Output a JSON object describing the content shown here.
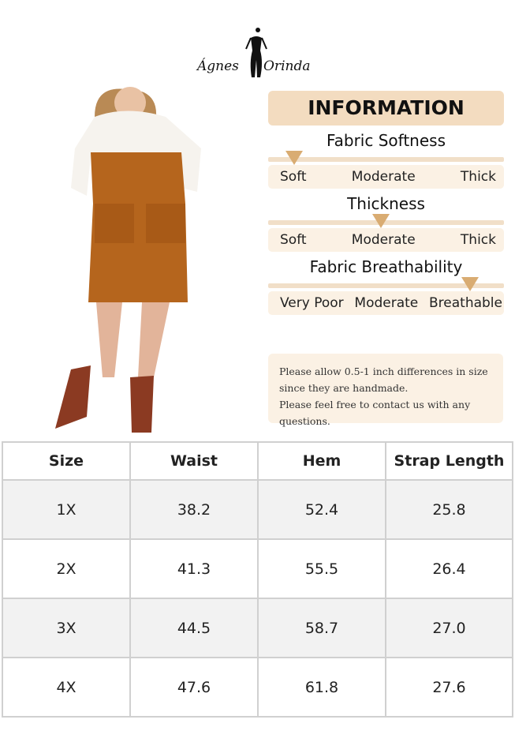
{
  "brand": {
    "name_left": "Ágnes",
    "name_right": "Orinda"
  },
  "info": {
    "title": "INFORMATION",
    "accent": "#d9ac72",
    "sections": [
      {
        "title": "Fabric Softness",
        "labels": [
          "Soft",
          "Moderate",
          "Thick"
        ],
        "selected": "Soft"
      },
      {
        "title": "Thickness",
        "labels": [
          "Soft",
          "Moderate",
          "Thick"
        ],
        "selected": "Moderate"
      },
      {
        "title": "Fabric Breathability",
        "labels": [
          "Very Poor",
          "Moderate",
          "Breathable"
        ],
        "selected": "Breathable"
      }
    ]
  },
  "note": {
    "lines": [
      "Please allow 0.5-1 inch differences in size",
      "since they are handmade.",
      "Please feel free to contact us with any questions."
    ]
  },
  "table": {
    "headers": [
      "Size",
      "Waist",
      "Hem",
      "Strap Length"
    ],
    "rows": [
      [
        "1X",
        "38.2",
        "52.4",
        "25.8"
      ],
      [
        "2X",
        "41.3",
        "55.5",
        "26.4"
      ],
      [
        "3X",
        "44.5",
        "58.7",
        "27.0"
      ],
      [
        "4X",
        "47.6",
        "61.8",
        "27.6"
      ]
    ]
  }
}
